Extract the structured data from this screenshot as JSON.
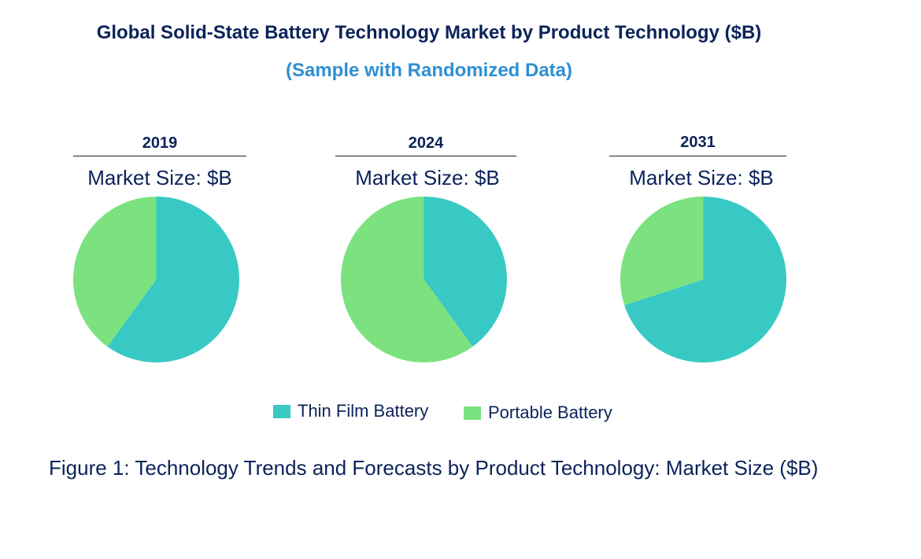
{
  "title": "Global Solid-State Battery Technology Market by Product Technology ($B)",
  "subtitle": "(Sample with Randomized Data)",
  "colors": {
    "thin_film": "#39c9c5",
    "portable": "#7be27f",
    "title": "#0b2359",
    "subtitle": "#2e8fd2"
  },
  "chart_data": [
    {
      "type": "pie",
      "title": "2019",
      "subtitle": "Market Size: $B",
      "categories": [
        "Thin Film Battery",
        "Portable Battery"
      ],
      "values": [
        60,
        40
      ]
    },
    {
      "type": "pie",
      "title": "2024",
      "subtitle": "Market Size: $B",
      "categories": [
        "Thin Film Battery",
        "Portable Battery"
      ],
      "values": [
        40,
        60
      ]
    },
    {
      "type": "pie",
      "title": "2031",
      "subtitle": "Market Size: $B",
      "categories": [
        "Thin Film Battery",
        "Portable Battery"
      ],
      "values": [
        70,
        30
      ]
    }
  ],
  "legend": {
    "items": [
      "Thin Film Battery",
      "Portable Battery"
    ]
  },
  "caption": "Figure 1: Technology Trends and Forecasts by Product Technology: Market Size ($B)"
}
